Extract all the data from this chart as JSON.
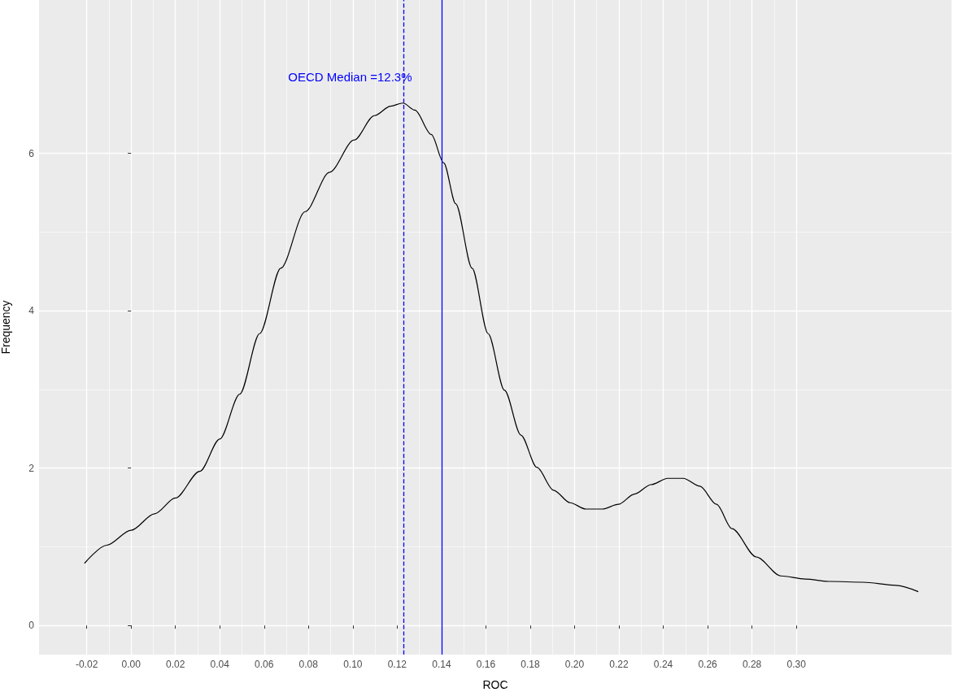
{
  "chart_data": {
    "type": "line",
    "xlabel": "ROC",
    "ylabel": "Frequency",
    "xlim": [
      -0.0415,
      0.37
    ],
    "ylim": [
      -0.37,
      7.95
    ],
    "xticks": [
      -0.02,
      {
        "value": 0,
        "label": "0.00"
      },
      0.02,
      0.04,
      0.06,
      0.08,
      {
        "value": 0.1,
        "label": "0.10"
      },
      0.12,
      0.14,
      0.16,
      0.18,
      {
        "value": 0.2,
        "label": "0.20"
      },
      0.22,
      0.24,
      0.26,
      0.28,
      {
        "value": 0.3,
        "label": "0.30"
      }
    ],
    "yticks": [
      0,
      2,
      4,
      6
    ],
    "grid": true,
    "marker": "none",
    "line_style": "solid",
    "series": [
      {
        "color": "#000000",
        "x": [
          -0.021,
          -0.011,
          0,
          0.0106,
          0.02,
          0.031,
          0.04,
          0.049,
          0.058,
          0.0675,
          0.0785,
          0.0895,
          0.1006,
          0.1097,
          0.117,
          0.1226,
          0.128,
          0.1354,
          0.141,
          0.1464,
          0.1538,
          0.161,
          0.1684,
          0.1758,
          0.183,
          0.1905,
          0.198,
          0.205,
          0.2125,
          0.2198,
          0.227,
          0.2345,
          0.242,
          0.249,
          0.2565,
          0.264,
          0.271,
          0.282,
          0.293,
          0.304,
          0.315,
          0.33,
          0.345,
          0.355
        ],
        "values": [
          0.79,
          1.02,
          1.21,
          1.42,
          1.62,
          1.96,
          2.37,
          2.94,
          3.71,
          4.54,
          5.26,
          5.76,
          6.17,
          6.48,
          6.6,
          6.64,
          6.55,
          6.24,
          5.88,
          5.36,
          4.54,
          3.71,
          2.99,
          2.42,
          2.01,
          1.72,
          1.56,
          1.48,
          1.48,
          1.54,
          1.67,
          1.79,
          1.87,
          1.87,
          1.77,
          1.54,
          1.23,
          0.87,
          0.63,
          0.59,
          0.56,
          0.55,
          0.51,
          0.43
        ]
      }
    ],
    "ref_lines": [
      {
        "axis": "x",
        "value": 0.123,
        "label": "OECD Median =12.3%",
        "color": "#0000ff",
        "line_style": "dashed"
      },
      {
        "axis": "x",
        "value": 0.14,
        "color": "#0000ff",
        "line_style": "solid"
      }
    ]
  }
}
